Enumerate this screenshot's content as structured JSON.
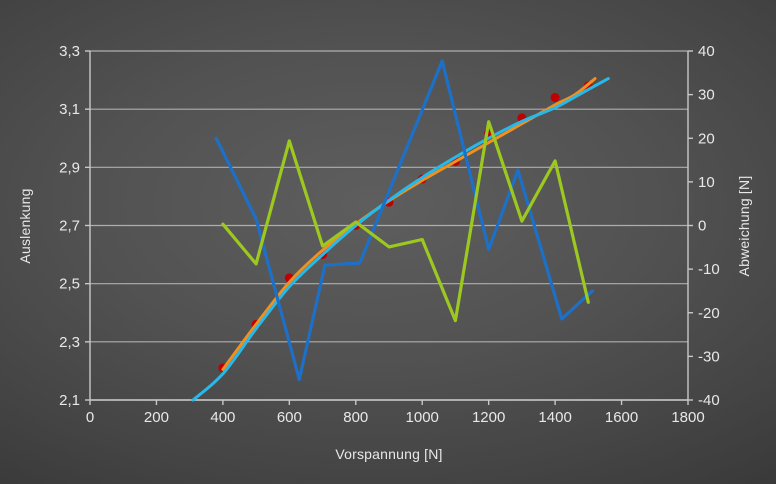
{
  "chart_data": {
    "type": "line",
    "title": "",
    "xlabel": "Vorspannung [N]",
    "ylabel_left": "Auslenkung",
    "ylabel_right": "Abweichung [N]",
    "x_range": [
      0,
      1800
    ],
    "x_tick_values": [
      0,
      200,
      400,
      600,
      800,
      1000,
      1200,
      1400,
      1600,
      1800
    ],
    "x_tick_labels": [
      "0",
      "200",
      "400",
      "600",
      "800",
      "1000",
      "1200",
      "1400",
      "1600",
      "1800"
    ],
    "left_range": [
      2.1,
      3.3
    ],
    "left_tick_values": [
      2.1,
      2.3,
      2.5,
      2.7,
      2.9,
      3.1,
      3.3
    ],
    "left_tick_labels": [
      "2,1",
      "2,3",
      "2,5",
      "2,7",
      "2,9",
      "3,1",
      "3,3"
    ],
    "right_range": [
      -40,
      40
    ],
    "right_tick_values": [
      -40,
      -30,
      -20,
      -10,
      0,
      10,
      20,
      30,
      40
    ],
    "right_tick_labels": [
      "-40",
      "-30",
      "-20",
      "-10",
      "0",
      "10",
      "20",
      "30",
      "40"
    ],
    "grid": "horizontal-only",
    "legend": "none",
    "colors": {
      "measurement_points": "#c00000",
      "fit_orange": "#f0901e",
      "fit_cyan": "#27b9ea",
      "deviation_blue": "#1d70c8",
      "deviation_green": "#9cc81f",
      "gridline": "#aeaeae",
      "axis": "#c8c8c8",
      "label": "#e8e8e8"
    },
    "series": [
      {
        "name": "messpunkte",
        "kind": "scatter",
        "axis": "left",
        "color_key": "measurement_points",
        "points": [
          [
            400,
            2.21
          ],
          [
            500,
            2.36
          ],
          [
            600,
            2.52
          ],
          [
            700,
            2.6
          ],
          [
            800,
            2.7
          ],
          [
            900,
            2.78
          ],
          [
            1000,
            2.86
          ],
          [
            1100,
            2.92
          ],
          [
            1200,
            3.02
          ],
          [
            1300,
            3.07
          ],
          [
            1400,
            3.14
          ],
          [
            1500,
            3.18
          ]
        ]
      },
      {
        "name": "fit-kurve-orange",
        "kind": "smooth",
        "axis": "left",
        "color_key": "fit_orange",
        "width": 3,
        "points": [
          [
            400,
            2.205
          ],
          [
            500,
            2.36
          ],
          [
            600,
            2.505
          ],
          [
            700,
            2.615
          ],
          [
            800,
            2.705
          ],
          [
            900,
            2.785
          ],
          [
            1000,
            2.855
          ],
          [
            1100,
            2.92
          ],
          [
            1200,
            2.985
          ],
          [
            1300,
            3.05
          ],
          [
            1400,
            3.115
          ],
          [
            1460,
            3.15
          ],
          [
            1520,
            3.205
          ]
        ]
      },
      {
        "name": "fit-kurve-cyan",
        "kind": "smooth",
        "axis": "left",
        "color_key": "fit_cyan",
        "width": 3,
        "points": [
          [
            310,
            2.1
          ],
          [
            400,
            2.19
          ],
          [
            500,
            2.345
          ],
          [
            600,
            2.49
          ],
          [
            700,
            2.6
          ],
          [
            800,
            2.7
          ],
          [
            900,
            2.787
          ],
          [
            1000,
            2.865
          ],
          [
            1100,
            2.935
          ],
          [
            1200,
            3.0
          ],
          [
            1300,
            3.058
          ],
          [
            1400,
            3.105
          ],
          [
            1480,
            3.155
          ],
          [
            1560,
            3.205
          ]
        ]
      },
      {
        "name": "abweichung-blau",
        "kind": "polyline",
        "axis": "right",
        "color_key": "deviation_blue",
        "width": 3.2,
        "points": [
          [
            380,
            20
          ],
          [
            500,
            1.5
          ],
          [
            630,
            -35.3
          ],
          [
            707,
            -9.1
          ],
          [
            812,
            -8.6
          ],
          [
            1060,
            37.7
          ],
          [
            1200,
            -5.5
          ],
          [
            1288,
            12.7
          ],
          [
            1420,
            -21.4
          ],
          [
            1512,
            -15
          ]
        ]
      },
      {
        "name": "abweichung-gruen",
        "kind": "polyline",
        "axis": "right",
        "color_key": "deviation_green",
        "width": 3.2,
        "points": [
          [
            400,
            0.3
          ],
          [
            500,
            -8.8
          ],
          [
            600,
            19.4
          ],
          [
            700,
            -4.7
          ],
          [
            800,
            0.8
          ],
          [
            900,
            -4.9
          ],
          [
            1000,
            -3.2
          ],
          [
            1100,
            -21.8
          ],
          [
            1200,
            23.8
          ],
          [
            1300,
            1.0
          ],
          [
            1400,
            14.8
          ],
          [
            1500,
            -17.6
          ]
        ]
      }
    ]
  }
}
